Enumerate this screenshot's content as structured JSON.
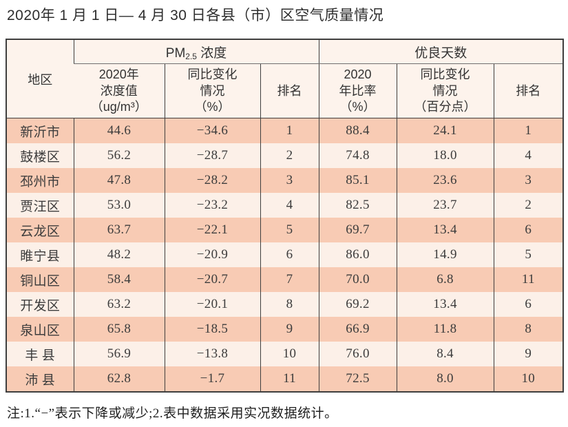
{
  "title": "2020年 1 月 1 日— 4 月 30 日各县（市）区空气质量情况",
  "table": {
    "header": {
      "region": "地区",
      "pm25_group": {
        "prefix": "PM",
        "sub": "2.5",
        "suffix": " 浓度"
      },
      "good_days_group": "优良天数",
      "pm_value": "2020年\n浓度值\n（ug/m³）",
      "pm_change": "同比变化\n情况\n（%）",
      "pm_rank": "排名",
      "rate": "2020\n年比率\n（%）",
      "rate_change": "同比变化\n情况\n（百分点）",
      "rate_rank": "排名"
    },
    "rows": [
      {
        "region": "新沂市",
        "pm_value": "44.6",
        "pm_change": "−34.6",
        "pm_rank": "1",
        "rate": "88.4",
        "rate_change": "24.1",
        "rate_rank": "1"
      },
      {
        "region": "鼓楼区",
        "pm_value": "56.2",
        "pm_change": "−28.7",
        "pm_rank": "2",
        "rate": "74.8",
        "rate_change": "18.0",
        "rate_rank": "4"
      },
      {
        "region": "邳州市",
        "pm_value": "47.8",
        "pm_change": "−28.2",
        "pm_rank": "3",
        "rate": "85.1",
        "rate_change": "23.6",
        "rate_rank": "3"
      },
      {
        "region": "贾汪区",
        "pm_value": "53.0",
        "pm_change": "−23.2",
        "pm_rank": "4",
        "rate": "82.5",
        "rate_change": "23.7",
        "rate_rank": "2"
      },
      {
        "region": "云龙区",
        "pm_value": "63.7",
        "pm_change": "−22.1",
        "pm_rank": "5",
        "rate": "69.7",
        "rate_change": "13.4",
        "rate_rank": "6"
      },
      {
        "region": "睢宁县",
        "pm_value": "48.2",
        "pm_change": "−20.9",
        "pm_rank": "6",
        "rate": "86.0",
        "rate_change": "14.9",
        "rate_rank": "5"
      },
      {
        "region": "铜山区",
        "pm_value": "58.4",
        "pm_change": "−20.7",
        "pm_rank": "7",
        "rate": "70.0",
        "rate_change": "6.8",
        "rate_rank": "11"
      },
      {
        "region": "开发区",
        "pm_value": "63.2",
        "pm_change": "−20.1",
        "pm_rank": "8",
        "rate": "69.2",
        "rate_change": "13.4",
        "rate_rank": "6"
      },
      {
        "region": "泉山区",
        "pm_value": "65.8",
        "pm_change": "−18.5",
        "pm_rank": "9",
        "rate": "66.9",
        "rate_change": "11.8",
        "rate_rank": "8"
      },
      {
        "region": "丰 县",
        "pm_value": "56.9",
        "pm_change": "−13.8",
        "pm_rank": "10",
        "rate": "76.0",
        "rate_change": "8.4",
        "rate_rank": "9"
      },
      {
        "region": "沛 县",
        "pm_value": "62.8",
        "pm_change": "−1.7",
        "pm_rank": "11",
        "rate": "72.5",
        "rate_change": "8.0",
        "rate_rank": "10"
      }
    ]
  },
  "footnote": "注:1.“−”表示下降或减少;2.表中数据采用实况数据统计。",
  "colors": {
    "row_odd_bg": "#f8cbb4",
    "row_even_bg": "#fcf0e8",
    "header_bg": "#fdf3ec",
    "border": "#3e3e3e",
    "text": "#3c3c3c",
    "page_bg": "#ffffff"
  }
}
